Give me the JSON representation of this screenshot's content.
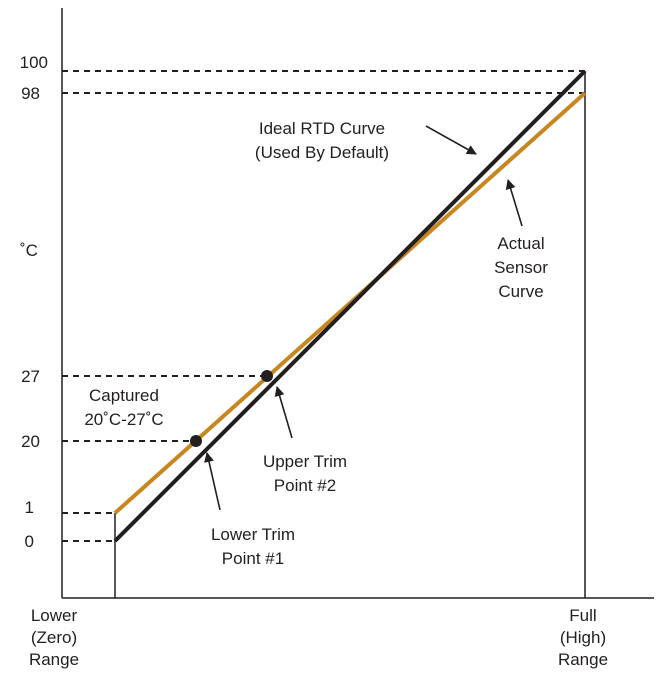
{
  "chart_data": {
    "type": "line",
    "y_unit_label": "˚C",
    "y_ticks": [
      "100",
      "98",
      "27",
      "20",
      "1",
      "0"
    ],
    "x_labels": {
      "lower": [
        "Lower",
        "(Zero)",
        "Range"
      ],
      "full": [
        "Full",
        "(High)",
        "Range"
      ]
    },
    "series": [
      {
        "name": "Ideal RTD Curve (Used By Default)",
        "color": "#231f20",
        "values": [
          {
            "x": "Lower (Zero) Range",
            "y": 0
          },
          {
            "x": "Full (High) Range",
            "y": 100
          }
        ]
      },
      {
        "name": "Actual Sensor Curve",
        "color": "#c8861e",
        "values": [
          {
            "x": "Lower (Zero) Range",
            "y": 1
          },
          {
            "x": "Full (High) Range",
            "y": 98
          }
        ]
      }
    ],
    "trim_points": [
      {
        "name": "Lower Trim Point #1",
        "y": 20
      },
      {
        "name": "Upper Trim Point #2",
        "y": 27
      }
    ]
  },
  "annotations": {
    "ideal_curve": [
      "Ideal RTD Curve",
      "(Used By Default)"
    ],
    "actual_curve": [
      "Actual",
      "Sensor",
      "Curve"
    ],
    "captured": [
      "Captured",
      "20˚C-27˚C"
    ],
    "upper_trim": [
      "Upper Trim",
      "Point #2"
    ],
    "lower_trim": [
      "Lower Trim",
      "Point #1"
    ]
  }
}
